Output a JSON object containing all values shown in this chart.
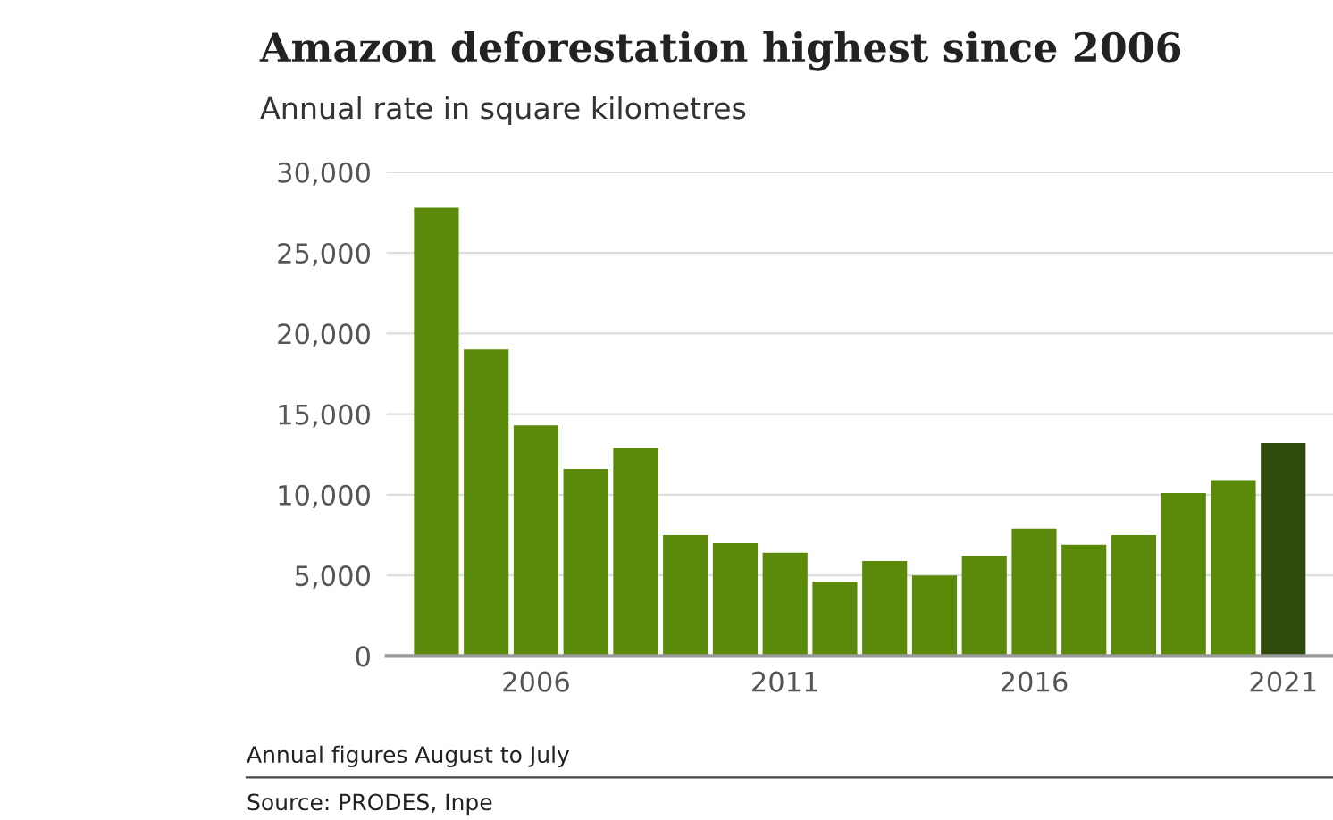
{
  "chart_data": {
    "type": "bar",
    "title": "Amazon deforestation highest since 2006",
    "subtitle": "Annual rate in square kilometres",
    "x": [
      2004,
      2005,
      2006,
      2007,
      2008,
      2009,
      2010,
      2011,
      2012,
      2013,
      2014,
      2015,
      2016,
      2017,
      2018,
      2019,
      2020,
      2021
    ],
    "values": [
      27800,
      19000,
      14300,
      11600,
      12900,
      7500,
      7000,
      6400,
      4600,
      5900,
      5000,
      6200,
      7900,
      6900,
      7500,
      10100,
      10900,
      13200
    ],
    "colors": [
      "#5b8a0a",
      "#5b8a0a",
      "#5b8a0a",
      "#5b8a0a",
      "#5b8a0a",
      "#5b8a0a",
      "#5b8a0a",
      "#5b8a0a",
      "#5b8a0a",
      "#5b8a0a",
      "#5b8a0a",
      "#5b8a0a",
      "#5b8a0a",
      "#5b8a0a",
      "#5b8a0a",
      "#5b8a0a",
      "#5b8a0a",
      "#2f4a0c"
    ],
    "xlim": [
      2003,
      2022
    ],
    "xticks": [
      2006,
      2011,
      2016,
      2021
    ],
    "ylim": [
      0,
      30000
    ],
    "yticks": [
      {
        "value": 0,
        "label": "0"
      },
      {
        "value": 5000,
        "label": "5,000"
      },
      {
        "value": 10000,
        "label": "10,000"
      },
      {
        "value": 15000,
        "label": "15,000"
      },
      {
        "value": 20000,
        "label": "20,000"
      },
      {
        "value": 25000,
        "label": "25,000"
      },
      {
        "value": 30000,
        "label": "30,000"
      }
    ],
    "grid": "y",
    "annotations": [
      "Annual figures August to July",
      "Source: PRODES, Inpe"
    ]
  }
}
